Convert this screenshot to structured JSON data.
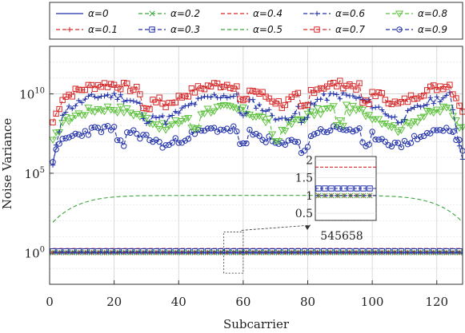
{
  "chart_data": {
    "type": "line",
    "xlabel": "Subcarrier",
    "ylabel": "Noise Variance",
    "yscale": "log",
    "xlim": [
      0,
      128
    ],
    "ylim": [
      0.01,
      10000000000000.0
    ],
    "x_ticks": [
      0,
      20,
      40,
      60,
      80,
      100,
      120
    ],
    "y_ticks": [
      {
        "value": 1,
        "label": "10",
        "exp": "0"
      },
      {
        "value": 100000,
        "label": "10",
        "exp": "5"
      },
      {
        "value": 10000000000,
        "label": "10",
        "exp": "10"
      }
    ],
    "grid": true,
    "legend": {
      "placement": "top",
      "columns": 5,
      "entries": [
        {
          "label": "α=0",
          "color": "#1f2fa8",
          "marker": "none",
          "dash": "solid"
        },
        {
          "label": "α=0.2",
          "color": "#3aa63a",
          "marker": "x",
          "dash": "dashed"
        },
        {
          "label": "α=0.4",
          "color": "#d62728",
          "marker": "none",
          "dash": "dashed"
        },
        {
          "label": "α=0.6",
          "color": "#1f2fa8",
          "marker": "plus",
          "dash": "dashed"
        },
        {
          "label": "α=0.8",
          "color": "#5cc13c",
          "marker": "triangle",
          "dash": "dashed"
        },
        {
          "label": "α=0.1",
          "color": "#d62728",
          "marker": "plus",
          "dash": "dashed"
        },
        {
          "label": "α=0.3",
          "color": "#1f2fa8",
          "marker": "square",
          "dash": "dashed"
        },
        {
          "label": "α=0.5",
          "color": "#3aa63a",
          "marker": "none",
          "dash": "dashed"
        },
        {
          "label": "α=0.7",
          "color": "#d62728",
          "marker": "square",
          "dash": "dashed"
        },
        {
          "label": "α=0.9",
          "color": "#1f2fa8",
          "marker": "circle",
          "dash": "dashed"
        }
      ]
    },
    "series": [
      {
        "name": "α=0",
        "values": "≈1 across all subcarriers"
      },
      {
        "name": "α=0.1",
        "values": "≈1"
      },
      {
        "name": "α=0.2",
        "values": "≈1"
      },
      {
        "name": "α=0.3",
        "values": "≈1.2"
      },
      {
        "name": "α=0.4",
        "values": "≈1.8"
      },
      {
        "name": "α=0.5",
        "values": "rises from ~30 at edges to ~3000 mid-band"
      },
      {
        "name": "α=0.6",
        "values": "~1e5 at edges, oscillating 1e8–1e10"
      },
      {
        "name": "α=0.7",
        "values": "~1e9 at edges, oscillating 1e9–1e11"
      },
      {
        "name": "α=0.8",
        "values": "oscillating 1e7–1e9"
      },
      {
        "name": "α=0.9",
        "values": "oscillating 1e6–1e8"
      }
    ],
    "inset": {
      "x_ticks_label": "545658",
      "y_ticks": [
        "2",
        "1.5",
        "1",
        "0.5"
      ],
      "ylim": [
        0.3,
        2.1
      ]
    }
  }
}
